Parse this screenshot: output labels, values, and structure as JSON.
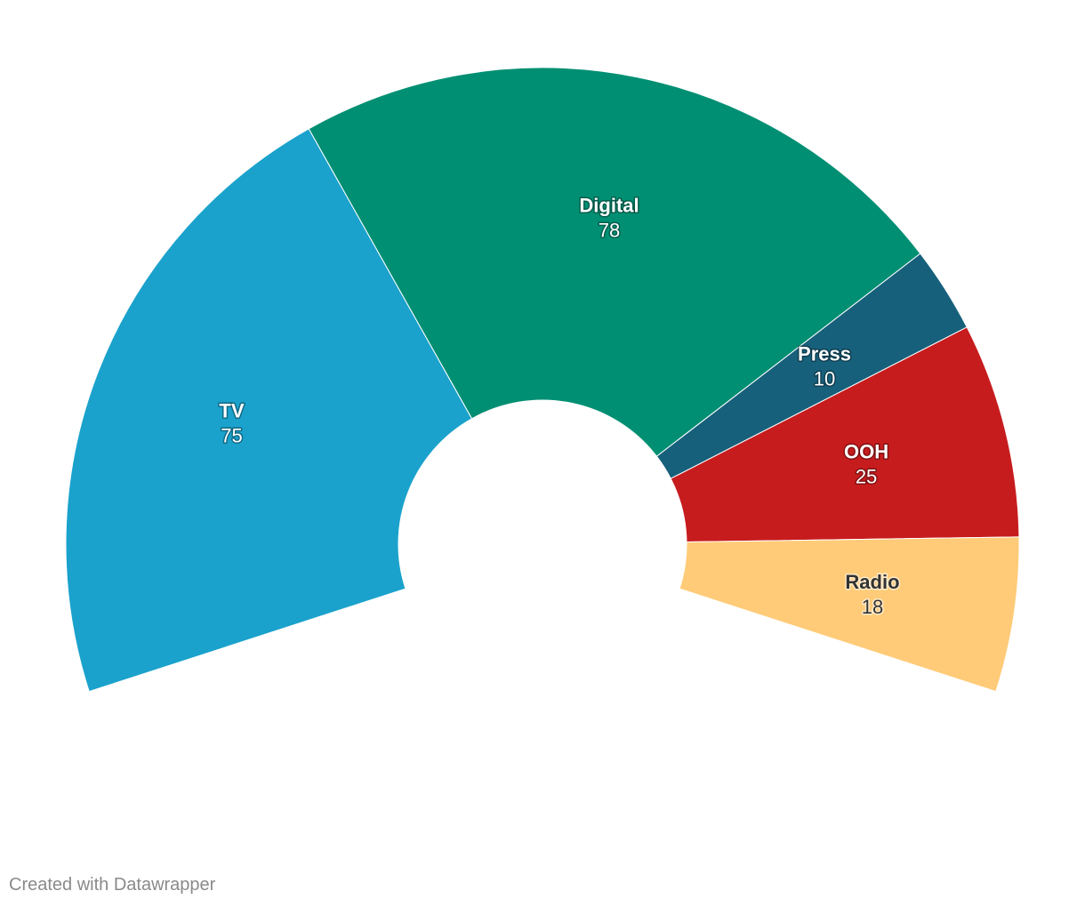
{
  "chart_data": {
    "type": "pie",
    "variant": "semicircle-donut",
    "arc_degrees": 216,
    "categories": [
      "TV",
      "Digital",
      "Press",
      "OOH",
      "Radio"
    ],
    "values": [
      75,
      78,
      10,
      25,
      18
    ],
    "colors": [
      "#1aa2cc",
      "#008f73",
      "#17607b",
      "#c71c1e",
      "#ffcb78"
    ],
    "label_colors": [
      "light",
      "light",
      "light",
      "light",
      "dark"
    ],
    "title": "",
    "legend": "none"
  },
  "footer": {
    "credit": "Created with Datawrapper"
  }
}
